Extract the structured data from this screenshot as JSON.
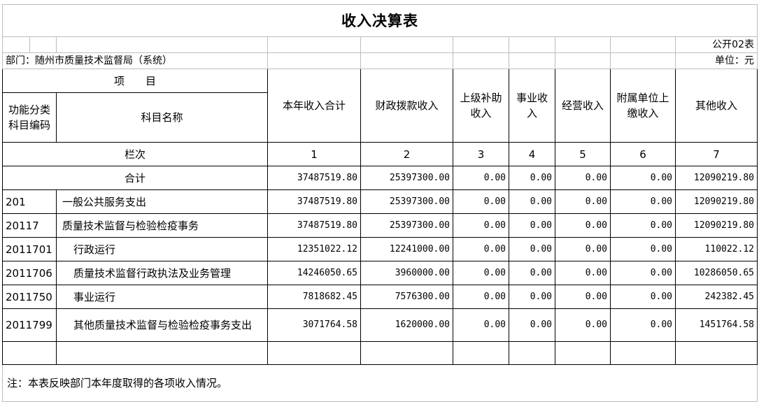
{
  "title": "收入决算表",
  "form_no": "公开02表",
  "department": "部门：随州市质量技术监督局（系统）",
  "unit": "单位：元",
  "header": {
    "item": "项　　目",
    "code": "功能分类科目编码",
    "name": "科目名称",
    "columns": [
      "本年收入合计",
      "财政拨款收入",
      "上级补助收入",
      "事业收入",
      "经营收入",
      "附属单位上缴收入",
      "其他收入"
    ],
    "seq_label": "栏次",
    "seq": [
      "1",
      "2",
      "3",
      "4",
      "5",
      "6",
      "7"
    ]
  },
  "total": {
    "label": "合计",
    "values": [
      "37487519.80",
      "25397300.00",
      "0.00",
      "0.00",
      "0.00",
      "0.00",
      "12090219.80"
    ]
  },
  "rows": [
    {
      "code": "201",
      "name": "一般公共服务支出",
      "level": 1,
      "values": [
        "37487519.80",
        "25397300.00",
        "0.00",
        "0.00",
        "0.00",
        "0.00",
        "12090219.80"
      ]
    },
    {
      "code": "20117",
      "name": "质量技术监督与检验检疫事务",
      "level": 1,
      "values": [
        "37487519.80",
        "25397300.00",
        "0.00",
        "0.00",
        "0.00",
        "0.00",
        "12090219.80"
      ]
    },
    {
      "code": "2011701",
      "name": "行政运行",
      "level": 2,
      "values": [
        "12351022.12",
        "12241000.00",
        "0.00",
        "0.00",
        "0.00",
        "0.00",
        "110022.12"
      ]
    },
    {
      "code": "2011706",
      "name": "质量技术监督行政执法及业务管理",
      "level": 2,
      "values": [
        "14246050.65",
        "3960000.00",
        "0.00",
        "0.00",
        "0.00",
        "0.00",
        "10286050.65"
      ]
    },
    {
      "code": "2011750",
      "name": "事业运行",
      "level": 2,
      "values": [
        "7818682.45",
        "7576300.00",
        "0.00",
        "0.00",
        "0.00",
        "0.00",
        "242382.45"
      ]
    },
    {
      "code": "2011799",
      "name": "其他质量技术监督与检验检疫事务支出",
      "level": 2,
      "values": [
        "3071764.58",
        "1620000.00",
        "0.00",
        "0.00",
        "0.00",
        "0.00",
        "1451764.58"
      ]
    }
  ],
  "note": "注：本表反映部门本年度取得的各项收入情况。"
}
